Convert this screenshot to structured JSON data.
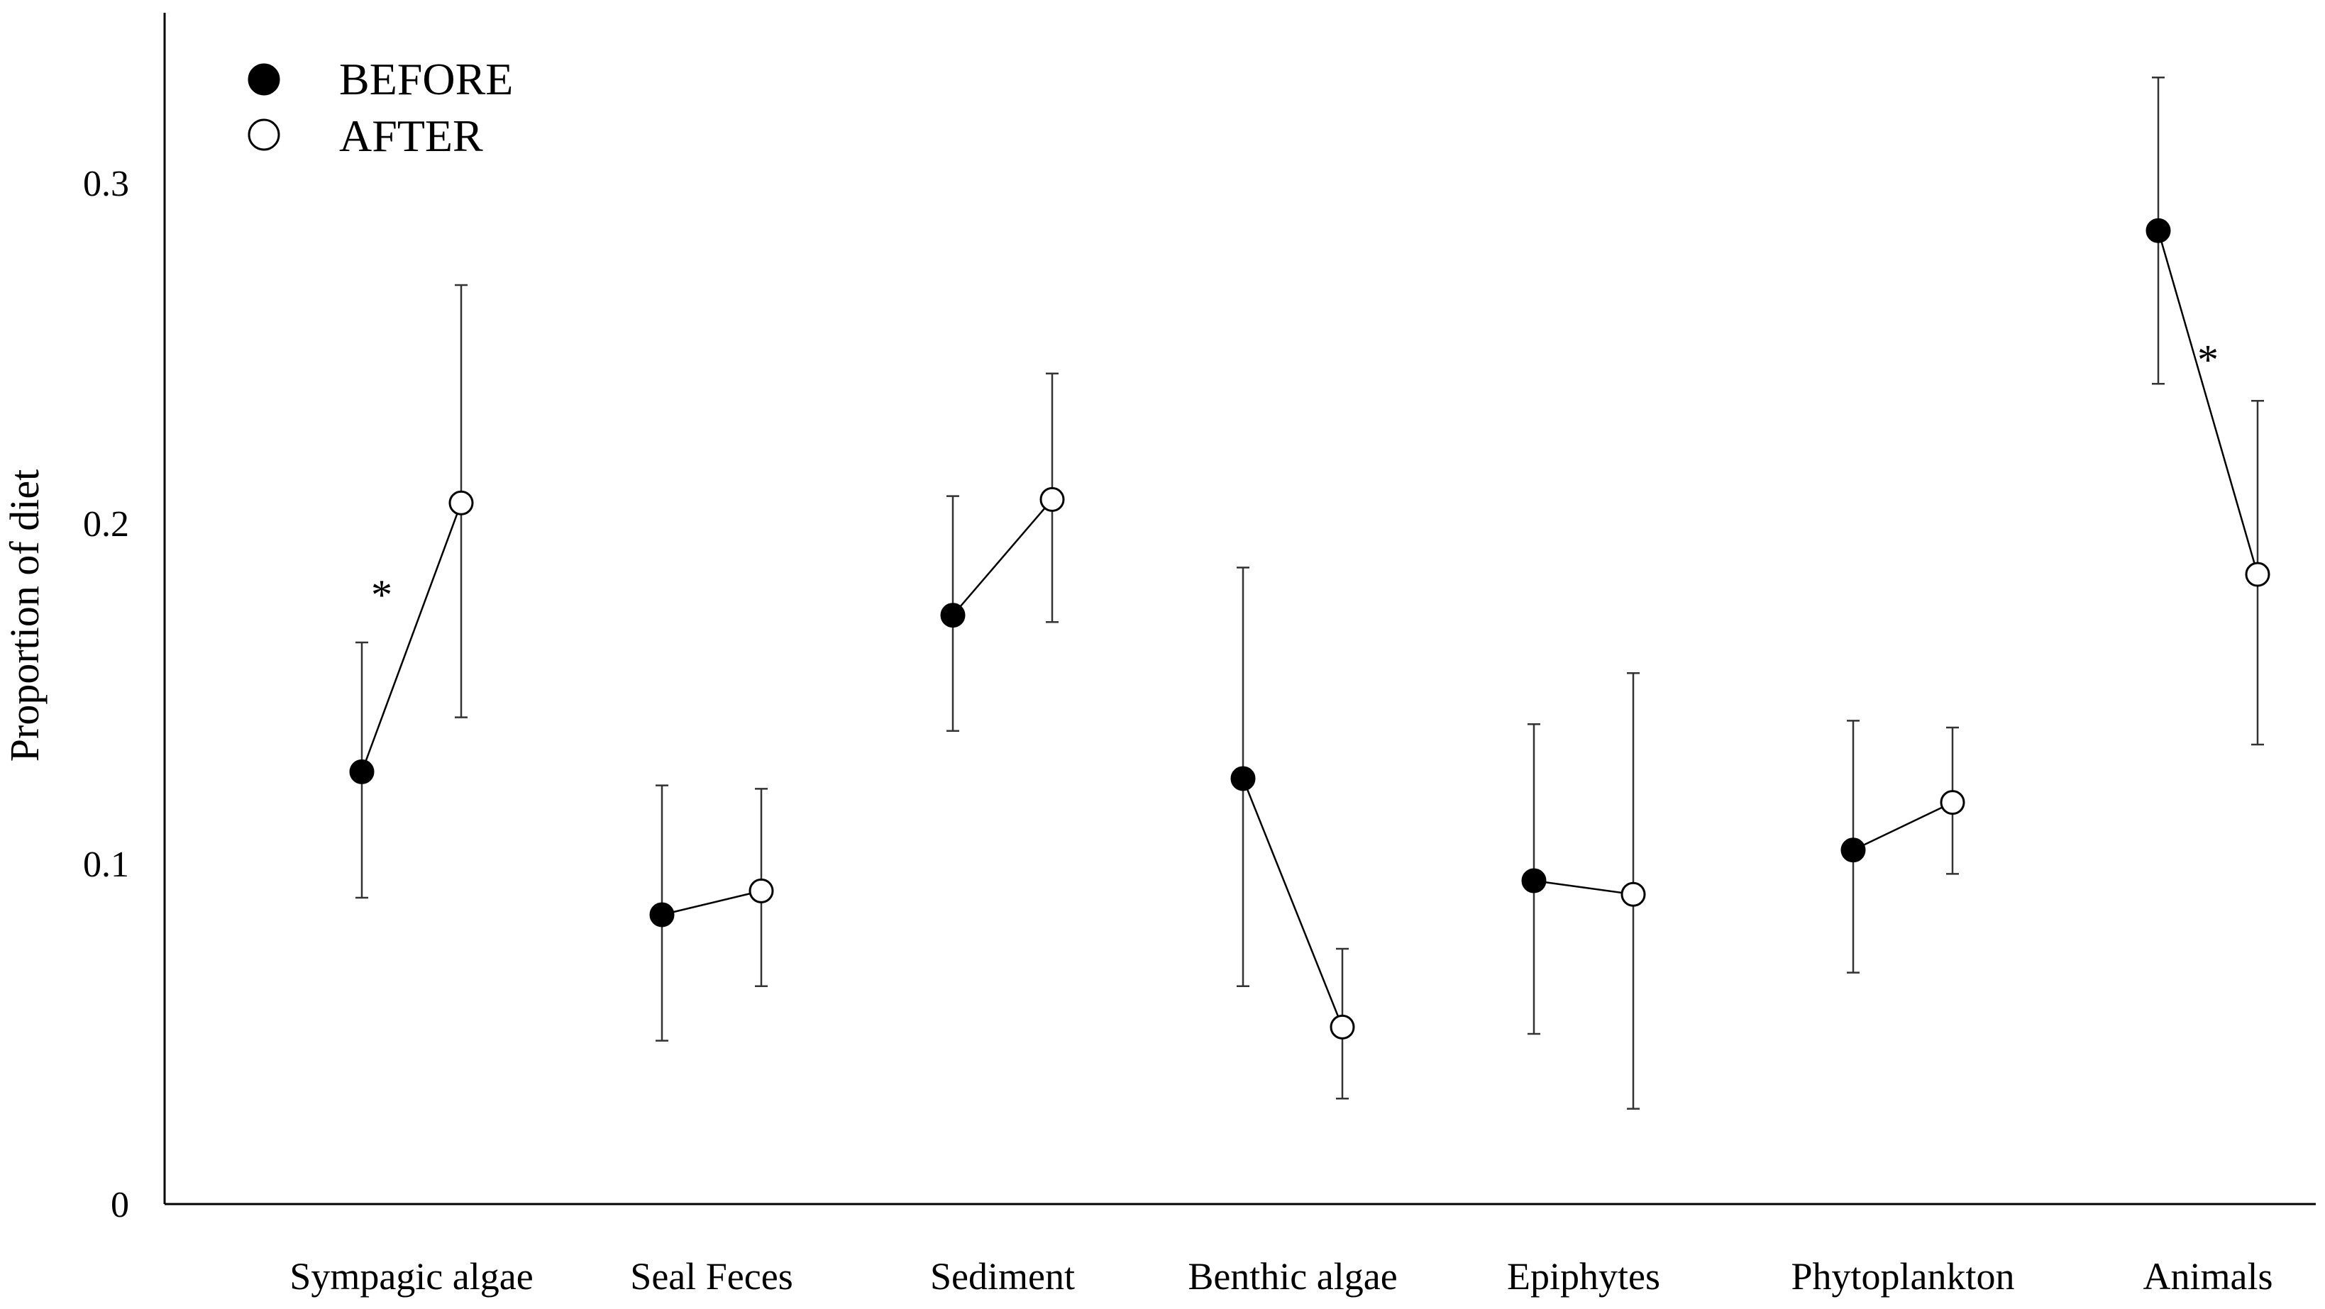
{
  "chart_data": {
    "type": "scatter",
    "ylabel": "Proportion of diet",
    "xlabel": "",
    "ylim": [
      0,
      0.35
    ],
    "yticks": [
      "0",
      "0.1",
      "0.2",
      "0.3"
    ],
    "yticks_values": [
      0,
      0.1,
      0.2,
      0.3
    ],
    "grid": false,
    "legend_position": "top-left",
    "categories": [
      "Sympagic algae",
      "Seal Feces",
      "Sediment",
      "Benthic algae",
      "Epiphytes",
      "Phytoplankton",
      "Animals"
    ],
    "series": [
      {
        "name": "BEFORE",
        "marker": "filled-circle",
        "values": [
          0.127,
          0.085,
          0.173,
          0.125,
          0.095,
          0.104,
          0.286
        ],
        "error_low": [
          0.09,
          0.048,
          0.139,
          0.064,
          0.05,
          0.068,
          0.241
        ],
        "error_high": [
          0.165,
          0.123,
          0.208,
          0.187,
          0.141,
          0.142,
          0.331
        ]
      },
      {
        "name": "AFTER",
        "marker": "open-circle",
        "values": [
          0.206,
          0.092,
          0.207,
          0.052,
          0.091,
          0.118,
          0.185
        ],
        "error_low": [
          0.143,
          0.064,
          0.171,
          0.031,
          0.028,
          0.097,
          0.135
        ],
        "error_high": [
          0.27,
          0.122,
          0.244,
          0.075,
          0.156,
          0.14,
          0.236
        ]
      }
    ],
    "annotations": [
      {
        "text": "*",
        "category": "Sympagic algae"
      },
      {
        "text": "*",
        "category": "Animals"
      }
    ]
  }
}
